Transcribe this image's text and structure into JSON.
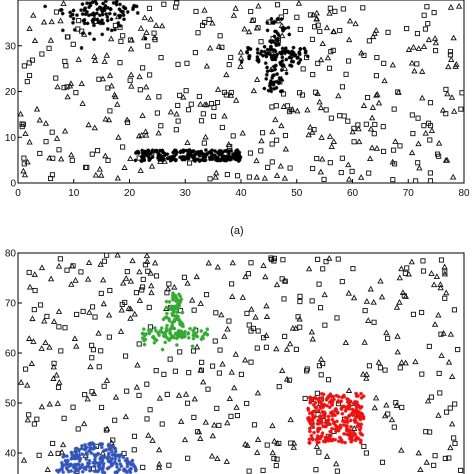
{
  "figure": {
    "caption_a": "(a)"
  },
  "chart_data": [
    {
      "type": "scatter",
      "panel": "a",
      "xlim": [
        0,
        80
      ],
      "ylim": [
        0,
        40
      ],
      "xticks": [
        0,
        10,
        20,
        30,
        40,
        50,
        60,
        70,
        80
      ],
      "yticks": [
        0,
        10,
        20,
        30
      ],
      "grid": false,
      "noise_markers": [
        "triangle",
        "square"
      ],
      "noise_density": "uniform, approx. 230 triangles and 230 squares",
      "clusters": [
        {
          "shape": "blob",
          "color": "#000000",
          "marker": "star",
          "center": [
            15,
            38
          ],
          "spread": [
            3.5,
            2.5
          ],
          "count": 140
        },
        {
          "shape": "cross",
          "color": "#000000",
          "marker": "star",
          "center": [
            46,
            28
          ],
          "arm_x": 6,
          "arm_y": 8,
          "count": 160
        },
        {
          "shape": "bar",
          "color": "#000000",
          "marker": "star",
          "x_range": [
            21,
            40
          ],
          "y_range": [
            4.8,
            7.2
          ],
          "count": 220
        }
      ]
    },
    {
      "type": "scatter",
      "panel": "b",
      "xlim": [
        0,
        80
      ],
      "ylim": [
        34,
        80
      ],
      "yticks": [
        40,
        50,
        60,
        70,
        80
      ],
      "grid": false,
      "noise_markers": [
        "triangle",
        "square"
      ],
      "noise_density": "uniform, approx. 240 triangles and 240 squares",
      "clusters": [
        {
          "shape": "inverted-T",
          "color": "#33aa33",
          "marker": "star",
          "center": [
            28,
            63.5
          ],
          "stem_y": [
            63,
            72
          ],
          "bar_x": [
            22,
            34
          ],
          "count": 160
        },
        {
          "shape": "rectangle",
          "color": "#ee1111",
          "marker": "star",
          "x_range": [
            52,
            62
          ],
          "y_range": [
            42,
            52
          ],
          "count": 280
        },
        {
          "shape": "half-disc",
          "color": "#3355bb",
          "marker": "star",
          "center": [
            14,
            36
          ],
          "radius": 6,
          "count": 200
        }
      ]
    }
  ]
}
